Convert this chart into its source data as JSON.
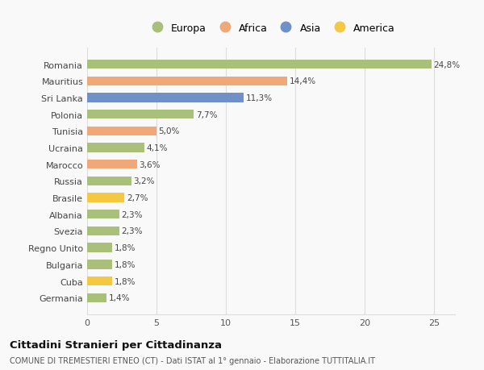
{
  "countries": [
    "Germania",
    "Cuba",
    "Bulgaria",
    "Regno Unito",
    "Svezia",
    "Albania",
    "Brasile",
    "Russia",
    "Marocco",
    "Ucraina",
    "Tunisia",
    "Polonia",
    "Sri Lanka",
    "Mauritius",
    "Romania"
  ],
  "values": [
    1.4,
    1.8,
    1.8,
    1.8,
    2.3,
    2.3,
    2.7,
    3.2,
    3.6,
    4.1,
    5.0,
    7.7,
    11.3,
    14.4,
    24.8
  ],
  "labels": [
    "1,4%",
    "1,8%",
    "1,8%",
    "1,8%",
    "2,3%",
    "2,3%",
    "2,7%",
    "3,2%",
    "3,6%",
    "4,1%",
    "5,0%",
    "7,7%",
    "11,3%",
    "14,4%",
    "24,8%"
  ],
  "colors": [
    "#a8c07a",
    "#f5c842",
    "#a8c07a",
    "#a8c07a",
    "#a8c07a",
    "#a8c07a",
    "#f5c842",
    "#a8c07a",
    "#f0a878",
    "#a8c07a",
    "#f0a878",
    "#a8c07a",
    "#7090c8",
    "#f0a878",
    "#a8c07a"
  ],
  "legend_labels": [
    "Europa",
    "Africa",
    "Asia",
    "America"
  ],
  "legend_colors": [
    "#a8c07a",
    "#f0a878",
    "#7090c8",
    "#f5c842"
  ],
  "title": "Cittadini Stranieri per Cittadinanza",
  "subtitle": "COMUNE DI TREMESTIERI ETNEO (CT) - Dati ISTAT al 1° gennaio - Elaborazione TUTTITALIA.IT",
  "xlim": [
    0,
    26.5
  ],
  "xticks": [
    0,
    5,
    10,
    15,
    20,
    25
  ],
  "background_color": "#f9f9f9",
  "grid_color": "#dddddd",
  "bar_height": 0.55
}
